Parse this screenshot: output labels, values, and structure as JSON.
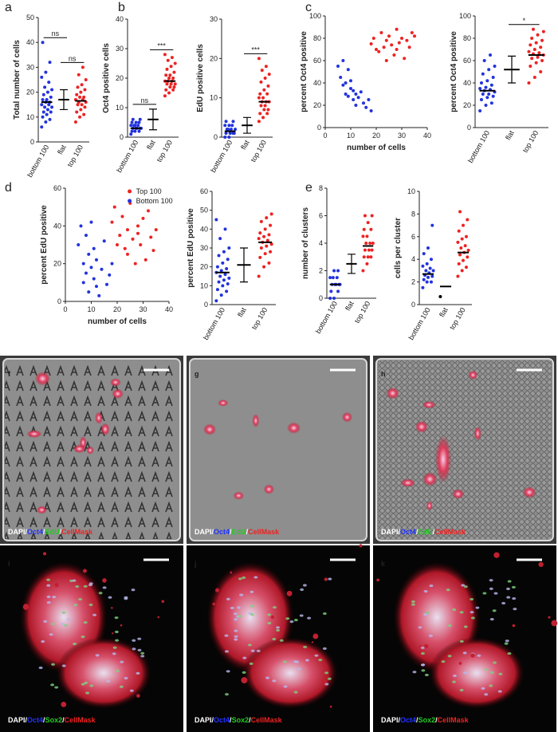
{
  "chart_data": [
    {
      "type": "dot",
      "panel": "a",
      "ylabel": "Total number of cells",
      "categories": [
        "bottom 100",
        "flat",
        "top 100"
      ],
      "ylim": [
        0,
        50
      ],
      "yticks": [
        0,
        10,
        20,
        30,
        40,
        50
      ],
      "groups": [
        {
          "color": "#2233dd",
          "mean": 16,
          "values": [
            6,
            8,
            9,
            10,
            11,
            12,
            12,
            13,
            14,
            14,
            15,
            15,
            16,
            16,
            17,
            17,
            18,
            19,
            20,
            21,
            22,
            24,
            26,
            28,
            32,
            40
          ]
        },
        {
          "color": "#000000",
          "mean": 17,
          "error": 4
        },
        {
          "color": "#ee2222",
          "mean": 16.5,
          "values": [
            8,
            10,
            11,
            12,
            13,
            14,
            15,
            15,
            16,
            16,
            17,
            17,
            18,
            18,
            19,
            20,
            21,
            22,
            23,
            25,
            27,
            30
          ]
        }
      ],
      "significance": [
        "ns",
        "ns"
      ]
    },
    {
      "type": "dot",
      "panel": "b",
      "ylabel": "Oct4 positive cells",
      "categories": [
        "bottom 100",
        "flat",
        "top 100"
      ],
      "ylim": [
        0,
        40
      ],
      "yticks": [
        0,
        10,
        20,
        30,
        40
      ],
      "groups": [
        {
          "color": "#2233dd",
          "mean": 3,
          "values": [
            1,
            2,
            2,
            2,
            3,
            3,
            3,
            3,
            3,
            4,
            4,
            4,
            4,
            5,
            5,
            5,
            6,
            6
          ]
        },
        {
          "color": "#000000",
          "mean": 6,
          "error": 3.5
        },
        {
          "color": "#ee2222",
          "mean": 19,
          "values": [
            14,
            15,
            16,
            16,
            17,
            17,
            18,
            18,
            18,
            19,
            19,
            19,
            20,
            20,
            21,
            21,
            22,
            23,
            24,
            25,
            26,
            27,
            28
          ]
        }
      ],
      "significance": [
        "ns",
        "***"
      ]
    },
    {
      "type": "dot",
      "ylabel": "EdU positive cells",
      "categories": [
        "bottom 100",
        "flat",
        "top 100"
      ],
      "ylim": [
        0,
        30
      ],
      "yticks": [
        0,
        10,
        20,
        30
      ],
      "groups": [
        {
          "color": "#2233dd",
          "mean": 1.5,
          "values": [
            0,
            0,
            1,
            1,
            1,
            1,
            2,
            2,
            2,
            2,
            3,
            3,
            3,
            4,
            4
          ]
        },
        {
          "color": "#000000",
          "mean": 3,
          "error": 2
        },
        {
          "color": "#ee2222",
          "mean": 9,
          "values": [
            4,
            5,
            6,
            6,
            7,
            7,
            8,
            8,
            9,
            9,
            9,
            10,
            10,
            11,
            11,
            12,
            13,
            14,
            15,
            16,
            17,
            18,
            20
          ]
        }
      ],
      "significance": [
        null,
        "***"
      ]
    },
    {
      "type": "scatter",
      "panel": "c",
      "ylabel": "percent Oct4 positive",
      "xlabel": "number of cells",
      "xlim": [
        0,
        40
      ],
      "xticks": [
        0,
        10,
        20,
        30,
        40
      ],
      "ylim": [
        0,
        100
      ],
      "yticks": [
        0,
        20,
        40,
        60,
        80,
        100
      ],
      "series": [
        {
          "color": "#ee2222",
          "x": [
            18,
            19,
            20,
            21,
            22,
            23,
            24,
            24,
            25,
            26,
            27,
            28,
            28,
            29,
            30,
            31,
            32,
            33,
            34,
            35
          ],
          "y": [
            75,
            80,
            70,
            68,
            85,
            72,
            78,
            60,
            82,
            74,
            65,
            88,
            70,
            76,
            80,
            62,
            78,
            72,
            85,
            82
          ]
        },
        {
          "color": "#2233dd",
          "x": [
            5,
            6,
            7,
            7,
            8,
            8,
            9,
            9,
            10,
            10,
            11,
            11,
            12,
            12,
            13,
            14,
            15,
            16,
            17,
            18
          ],
          "y": [
            55,
            45,
            60,
            38,
            40,
            30,
            52,
            28,
            35,
            42,
            25,
            33,
            30,
            20,
            27,
            32,
            22,
            18,
            25,
            15
          ]
        }
      ]
    },
    {
      "type": "dot",
      "ylabel": "percent Oct4 positive",
      "categories": [
        "bottom 100",
        "flat",
        "top 100"
      ],
      "ylim": [
        0,
        100
      ],
      "yticks": [
        0,
        20,
        40,
        60,
        80,
        100
      ],
      "groups": [
        {
          "color": "#2233dd",
          "mean": 33,
          "values": [
            15,
            20,
            22,
            25,
            27,
            28,
            30,
            30,
            32,
            33,
            34,
            35,
            36,
            38,
            40,
            42,
            45,
            48,
            52,
            55,
            60,
            65
          ]
        },
        {
          "color": "#000000",
          "mean": 52,
          "error": 12
        },
        {
          "color": "#ee2222",
          "mean": 65,
          "values": [
            40,
            45,
            50,
            55,
            58,
            60,
            62,
            63,
            65,
            66,
            67,
            68,
            70,
            72,
            74,
            76,
            78,
            80,
            83,
            86,
            88
          ]
        }
      ],
      "significance": [
        null,
        "*"
      ]
    },
    {
      "type": "scatter",
      "panel": "d",
      "ylabel": "percent EdU positive",
      "xlabel": "number of cells",
      "xlim": [
        0,
        40
      ],
      "xticks": [
        0,
        10,
        20,
        30,
        40
      ],
      "ylim": [
        0,
        60
      ],
      "yticks": [
        0,
        20,
        40,
        60
      ],
      "legend": true,
      "series": [
        {
          "name": "Top 100",
          "color": "#ee2222",
          "x": [
            18,
            19,
            20,
            21,
            22,
            23,
            24,
            24,
            25,
            26,
            27,
            28,
            28,
            29,
            30,
            31,
            32,
            33,
            34,
            35
          ],
          "y": [
            42,
            50,
            30,
            35,
            45,
            28,
            25,
            38,
            52,
            33,
            20,
            40,
            36,
            30,
            44,
            22,
            48,
            34,
            27,
            38
          ]
        },
        {
          "name": "Bottom 100",
          "color": "#2233dd",
          "x": [
            5,
            6,
            7,
            7,
            8,
            8,
            9,
            9,
            10,
            10,
            11,
            11,
            12,
            12,
            13,
            14,
            15,
            16,
            17,
            18
          ],
          "y": [
            30,
            40,
            20,
            10,
            35,
            15,
            25,
            5,
            42,
            18,
            12,
            28,
            8,
            22,
            3,
            17,
            32,
            9,
            14,
            20
          ]
        }
      ]
    },
    {
      "type": "dot",
      "ylabel": "percent EdU positive",
      "categories": [
        "bottom 100",
        "flat",
        "top 100"
      ],
      "ylim": [
        0,
        60
      ],
      "yticks": [
        0,
        10,
        20,
        30,
        40,
        50,
        60
      ],
      "groups": [
        {
          "color": "#2233dd",
          "mean": 17,
          "values": [
            2,
            5,
            7,
            8,
            10,
            11,
            12,
            13,
            14,
            15,
            16,
            17,
            18,
            19,
            20,
            22,
            24,
            26,
            28,
            30,
            35,
            40,
            45
          ]
        },
        {
          "color": "#000000",
          "mean": 21,
          "error": 9
        },
        {
          "color": "#ee2222",
          "mean": 33,
          "values": [
            15,
            20,
            22,
            25,
            27,
            28,
            30,
            31,
            32,
            33,
            34,
            35,
            36,
            37,
            38,
            40,
            42,
            44,
            46,
            48
          ]
        }
      ]
    },
    {
      "type": "dot",
      "panel": "e",
      "ylabel": "number of clusters",
      "categories": [
        "bottom 100",
        "flat",
        "top 100"
      ],
      "ylim": [
        0,
        8
      ],
      "yticks": [
        0,
        2,
        4,
        6,
        8
      ],
      "groups": [
        {
          "color": "#2233dd",
          "mean": 1,
          "values": [
            0,
            0,
            0.5,
            0.5,
            1,
            1,
            1,
            1,
            1,
            1.5,
            1.5,
            1.5,
            2,
            2
          ]
        },
        {
          "color": "#000000",
          "mean": 2.5,
          "error": 0.7
        },
        {
          "color": "#ee2222",
          "mean": 3.8,
          "values": [
            2,
            2.5,
            3,
            3,
            3,
            3.5,
            3.5,
            3.5,
            4,
            4,
            4,
            4.5,
            4.5,
            5,
            5,
            5.5,
            6,
            6
          ]
        }
      ]
    },
    {
      "type": "dot",
      "ylabel": "cells per cluster",
      "categories": [
        "bottom 100",
        "flat",
        "top 100"
      ],
      "ylim": [
        0,
        10
      ],
      "yticks": [
        0,
        2,
        4,
        6,
        8,
        10
      ],
      "groups": [
        {
          "color": "#2233dd",
          "mean": 2.7,
          "values": [
            1.5,
            2,
            2,
            2.2,
            2.4,
            2.5,
            2.6,
            2.8,
            3,
            3,
            3.2,
            3.4,
            3.6,
            4,
            4.5,
            5,
            7
          ]
        },
        {
          "color": "#000000",
          "mean": 1.6,
          "values": [
            0.7
          ]
        },
        {
          "color": "#ee2222",
          "mean": 4.6,
          "values": [
            2.5,
            3,
            3.3,
            3.6,
            3.9,
            4.2,
            4.4,
            4.6,
            4.8,
            5,
            5.2,
            5.5,
            5.8,
            6,
            6.5,
            7,
            7.5,
            8.2
          ]
        }
      ]
    }
  ],
  "images": [
    {
      "panel": "f",
      "stain": [
        {
          "text": "DAPI",
          "color": "#ffffff"
        },
        {
          "text": "/",
          "color": "#ffffff"
        },
        {
          "text": "Oct4",
          "color": "#2233ff"
        },
        {
          "text": "/",
          "color": "#ffffff"
        },
        {
          "text": "EdU",
          "color": "#22cc22"
        },
        {
          "text": "/",
          "color": "#ffffff"
        },
        {
          "text": "CellMask",
          "color": "#ee2222"
        }
      ]
    },
    {
      "panel": "g",
      "stain": [
        {
          "text": "DAPI",
          "color": "#ffffff"
        },
        {
          "text": "/",
          "color": "#ffffff"
        },
        {
          "text": "Oct4",
          "color": "#2233ff"
        },
        {
          "text": "/",
          "color": "#ffffff"
        },
        {
          "text": "EdU",
          "color": "#22cc22"
        },
        {
          "text": "/",
          "color": "#ffffff"
        },
        {
          "text": "CellMask",
          "color": "#ee2222"
        }
      ]
    },
    {
      "panel": "h",
      "stain": [
        {
          "text": "DAPI",
          "color": "#ffffff"
        },
        {
          "text": "/",
          "color": "#ffffff"
        },
        {
          "text": "Oct4",
          "color": "#2233ff"
        },
        {
          "text": "/",
          "color": "#ffffff"
        },
        {
          "text": "EdU",
          "color": "#22cc22"
        },
        {
          "text": "/",
          "color": "#ffffff"
        },
        {
          "text": "CellMask",
          "color": "#ee2222"
        }
      ]
    },
    {
      "panel": "i",
      "stain": [
        {
          "text": "DAPI",
          "color": "#ffffff"
        },
        {
          "text": "/",
          "color": "#ffffff"
        },
        {
          "text": "Oct4",
          "color": "#2233ff"
        },
        {
          "text": "/",
          "color": "#ffffff"
        },
        {
          "text": "Sox2",
          "color": "#22cc22"
        },
        {
          "text": "/",
          "color": "#ffffff"
        },
        {
          "text": "CellMask",
          "color": "#ee2222"
        }
      ]
    },
    {
      "panel": "j",
      "stain": [
        {
          "text": "DAPI",
          "color": "#ffffff"
        },
        {
          "text": "/",
          "color": "#ffffff"
        },
        {
          "text": "Oct4",
          "color": "#2233ff"
        },
        {
          "text": "/",
          "color": "#ffffff"
        },
        {
          "text": "Sox2",
          "color": "#22cc22"
        },
        {
          "text": "/",
          "color": "#ffffff"
        },
        {
          "text": "CellMask",
          "color": "#ee2222"
        }
      ]
    },
    {
      "panel": "k",
      "stain": [
        {
          "text": "DAPI",
          "color": "#ffffff"
        },
        {
          "text": "/",
          "color": "#ffffff"
        },
        {
          "text": "Oct4",
          "color": "#2233ff"
        },
        {
          "text": "/",
          "color": "#ffffff"
        },
        {
          "text": "Sox2",
          "color": "#22cc22"
        },
        {
          "text": "/",
          "color": "#ffffff"
        },
        {
          "text": "CellMask",
          "color": "#ee2222"
        }
      ]
    }
  ]
}
